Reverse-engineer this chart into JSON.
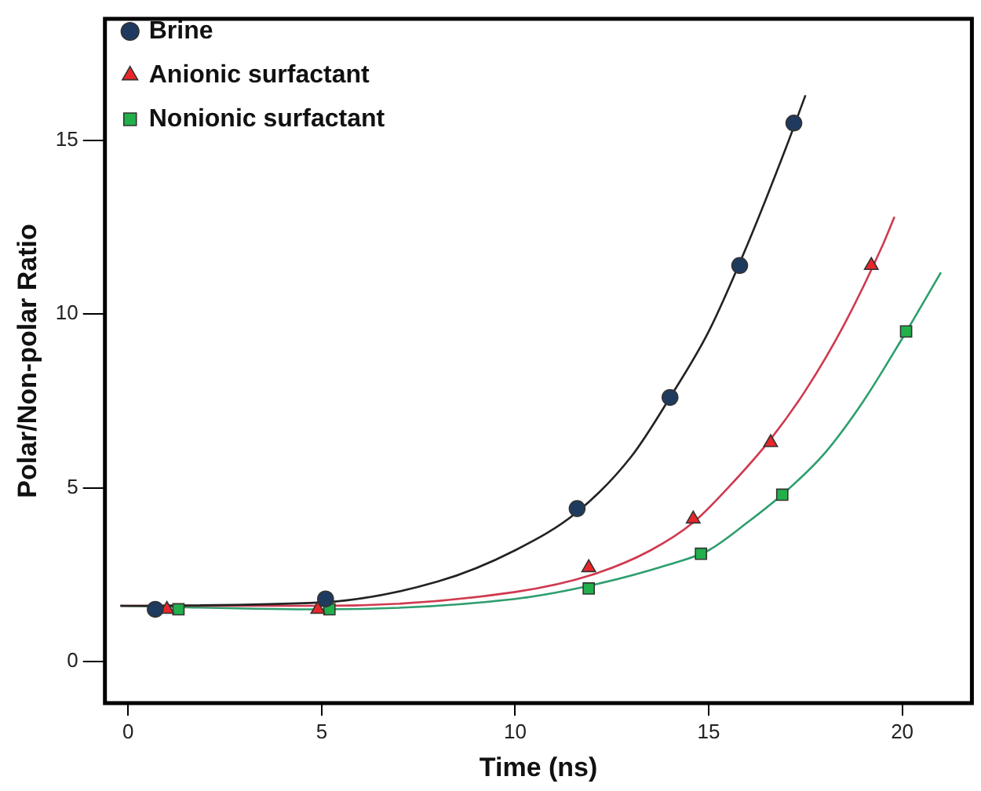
{
  "chart_data": {
    "type": "scatter",
    "xlabel": "Time (ns)",
    "ylabel": "Polar/Non-polar Ratio",
    "xlim": [
      -0.6,
      21.8
    ],
    "ylim": [
      -1.2,
      18.5
    ],
    "xticks": [
      0,
      5,
      10,
      15,
      20
    ],
    "yticks": [
      0,
      5,
      10,
      15
    ],
    "grid": false,
    "legend": "top left",
    "series": [
      {
        "name": "Brine",
        "color": "#1f3a5f",
        "marker": "circle",
        "x": [
          0.7,
          5.1,
          11.6,
          14,
          15.8,
          17.2
        ],
        "values": [
          1.5,
          1.8,
          4.4,
          7.6,
          11.4,
          15.5
        ]
      },
      {
        "name": "Anionic surfactant",
        "color": "#e8262a",
        "marker": "triangle",
        "x": [
          1,
          4.9,
          11.9,
          14.6,
          16.6,
          19.2
        ],
        "values": [
          1.5,
          1.5,
          2.7,
          4.1,
          6.3,
          11.4
        ]
      },
      {
        "name": "Nonionic surfactant",
        "color": "#22b04b",
        "marker": "square",
        "x": [
          1.3,
          5.2,
          11.9,
          14.8,
          16.9,
          20.1
        ],
        "values": [
          1.5,
          1.5,
          2.1,
          3.1,
          4.8,
          9.5
        ]
      },
      {
        "type": "line",
        "color": "#222222",
        "marker": "none",
        "x": [
          -0.2,
          5,
          8,
          10,
          11.6,
          13,
          14,
          15,
          16,
          17,
          17.5
        ],
        "values": [
          1.6,
          1.7,
          2.3,
          3.2,
          4.3,
          5.9,
          7.6,
          9.5,
          12,
          14.8,
          16.3
        ]
      },
      {
        "type": "line",
        "color": "#d0394f",
        "marker": "none",
        "x": [
          -0.2,
          5,
          10,
          12,
          13.5,
          14.6,
          15.5,
          16.6,
          17.5,
          18.5,
          19.5,
          19.8
        ],
        "values": [
          1.6,
          1.6,
          2.0,
          2.5,
          3.2,
          4.0,
          5.0,
          6.4,
          7.8,
          9.7,
          12.0,
          12.8
        ]
      },
      {
        "type": "line",
        "color": "#2e9e6e",
        "marker": "none",
        "x": [
          -0.2,
          5,
          10,
          12,
          14,
          15,
          16,
          17,
          18,
          19,
          20,
          21
        ],
        "values": [
          1.6,
          1.5,
          1.8,
          2.2,
          2.8,
          3.2,
          4.0,
          4.9,
          6.0,
          7.5,
          9.3,
          11.2
        ]
      }
    ]
  }
}
